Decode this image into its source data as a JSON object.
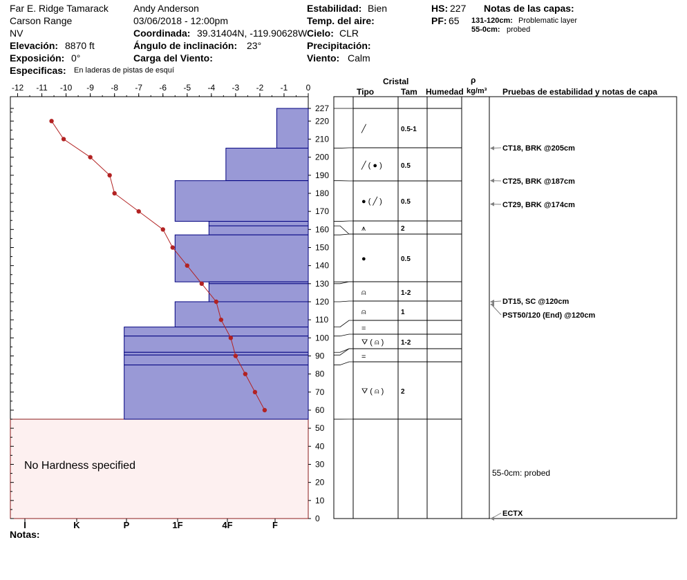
{
  "header": {
    "location": "Far E. Ridge Tamarack",
    "range": "Carson Range",
    "state": "NV",
    "elevation_label": "Elevación:",
    "elevation_value": "8870 ft",
    "aspect_label": "Exposición:",
    "aspect_value": "0°",
    "specifics_label": "Especificas:",
    "specifics_value": "En laderas de pistas de esquí",
    "observer": "Andy Anderson",
    "datetime": "03/06/2018 - 12:00pm",
    "coord_label": "Coordinada:",
    "coord_value": "39.31404N, -119.90628W",
    "incline_label": "Ángulo de inclinación:",
    "incline_value": "23°",
    "wind_load_label": "Carga del Viento:",
    "wind_load_value": "",
    "stability_label": "Estabilidad:",
    "stability_value": "Bien",
    "air_temp_label": "Temp. del aire:",
    "air_temp_value": "",
    "sky_label": "Cielo:",
    "sky_value": "CLR",
    "precip_label": "Precipitación:",
    "precip_value": "",
    "wind_label": "Viento:",
    "wind_value": "Calm",
    "hs_label": "HS:",
    "hs_value": "227",
    "pf_label": "PF:",
    "pf_value": "65",
    "layer_notes_title": "Notas de las capas:",
    "layer_notes": [
      {
        "range": "131-120cm:",
        "text": "Problematic layer"
      },
      {
        "range": "55-0cm:",
        "text": "probed"
      }
    ],
    "notes_label": "Notas:"
  },
  "columns": {
    "crystal": "Cristal",
    "type": "Tipo",
    "size": "Tam",
    "moisture": "Humedad",
    "density_symbol": "ρ",
    "density_unit": "kg/m³",
    "tests": "Pruebas de estabilidad y notas de capa"
  },
  "colors": {
    "layer_fill": "#9999d6",
    "layer_edge": "#00007f",
    "temp_line": "#b22222",
    "no_hardness_fill": "#fdf0f0",
    "no_hardness_edge": "#8b1a1a",
    "arrow": "#808080"
  },
  "chart_data": {
    "type": "snow-profile",
    "temp_axis": {
      "ticks": [
        -12,
        -11,
        -10,
        -9,
        -8,
        -7,
        -6,
        -5,
        -4,
        -3,
        -2,
        -1,
        0
      ],
      "range": [
        -12.3,
        0
      ]
    },
    "depth_axis": {
      "ticks": [
        0,
        10,
        20,
        30,
        40,
        50,
        60,
        70,
        80,
        90,
        100,
        110,
        120,
        130,
        140,
        150,
        160,
        170,
        180,
        190,
        200,
        210,
        220,
        227
      ],
      "range": [
        0,
        227
      ]
    },
    "hardness_scale": [
      "I",
      "K",
      "P",
      "1F",
      "4F",
      "F"
    ],
    "no_hardness_text": "No Hardness specified",
    "no_hardness_range": [
      0,
      55
    ],
    "layers": [
      {
        "top": 227,
        "bottom": 205,
        "hardness_temp": -1.3,
        "type": "╱",
        "size": "0.5-1"
      },
      {
        "top": 205,
        "bottom": 187,
        "hardness_temp": -3.4,
        "type": "╱ ( ● )",
        "size": "0.5"
      },
      {
        "top": 187,
        "bottom": 164.5,
        "hardness_temp": -5.5,
        "type": "● ( ╱ )",
        "size": "0.5"
      },
      {
        "top": 164.5,
        "bottom": 162,
        "hardness_temp": -4.1,
        "type": "",
        "size": ""
      },
      {
        "top": 162,
        "bottom": 157,
        "hardness_temp": -4.1,
        "type": "⩚",
        "size": "2"
      },
      {
        "top": 157,
        "bottom": 131,
        "hardness_temp": -5.5,
        "type": "●",
        "size": "0.5"
      },
      {
        "top": 131,
        "bottom": 130,
        "hardness_temp": -4.1,
        "type": "",
        "size": ""
      },
      {
        "top": 130,
        "bottom": 120,
        "hardness_temp": -4.1,
        "type": "⍝",
        "size": "1-2"
      },
      {
        "top": 120,
        "bottom": 106,
        "hardness_temp": -5.5,
        "type": "⍝",
        "size": "1"
      },
      {
        "top": 106,
        "bottom": 101,
        "hardness_temp": -7.6,
        "type": "=",
        "size": ""
      },
      {
        "top": 101,
        "bottom": 92,
        "hardness_temp": -7.6,
        "type": "⛛ ( ⍝ )",
        "size": "1-2"
      },
      {
        "top": 92,
        "bottom": 90.5,
        "hardness_temp": -7.6,
        "type": "",
        "size": ""
      },
      {
        "top": 90.5,
        "bottom": 85,
        "hardness_temp": -7.6,
        "type": "=",
        "size": ""
      },
      {
        "top": 85,
        "bottom": 55,
        "hardness_temp": -7.6,
        "type": "⛛ ( ⍝ )",
        "size": "2"
      }
    ],
    "temperatures": [
      {
        "depth": 220,
        "temp": -10.6
      },
      {
        "depth": 210,
        "temp": -10.1
      },
      {
        "depth": 200,
        "temp": -9.0
      },
      {
        "depth": 190,
        "temp": -8.2
      },
      {
        "depth": 180,
        "temp": -8.0
      },
      {
        "depth": 170,
        "temp": -7.0
      },
      {
        "depth": 160,
        "temp": -6.0
      },
      {
        "depth": 150,
        "temp": -5.6
      },
      {
        "depth": 140,
        "temp": -5.0
      },
      {
        "depth": 130,
        "temp": -4.4
      },
      {
        "depth": 120,
        "temp": -3.8
      },
      {
        "depth": 110,
        "temp": -3.6
      },
      {
        "depth": 100,
        "temp": -3.2
      },
      {
        "depth": 90,
        "temp": -3.0
      },
      {
        "depth": 80,
        "temp": -2.6
      },
      {
        "depth": 70,
        "temp": -2.2
      },
      {
        "depth": 60,
        "temp": -1.8
      }
    ],
    "tests": [
      {
        "depth": 205,
        "label": "CT18, BRK @205cm"
      },
      {
        "depth": 187,
        "label": "CT25, BRK @187cm"
      },
      {
        "depth": 174,
        "label": "CT29, BRK @174cm"
      },
      {
        "depth": 120,
        "label": "DT15, SC @120cm"
      },
      {
        "depth": 120,
        "label": "PST50/120 (End) @120cm"
      },
      {
        "depth": 20,
        "label": "55-0cm:  probed",
        "arrow": false
      },
      {
        "depth": 0,
        "label": "ECTX"
      }
    ]
  }
}
